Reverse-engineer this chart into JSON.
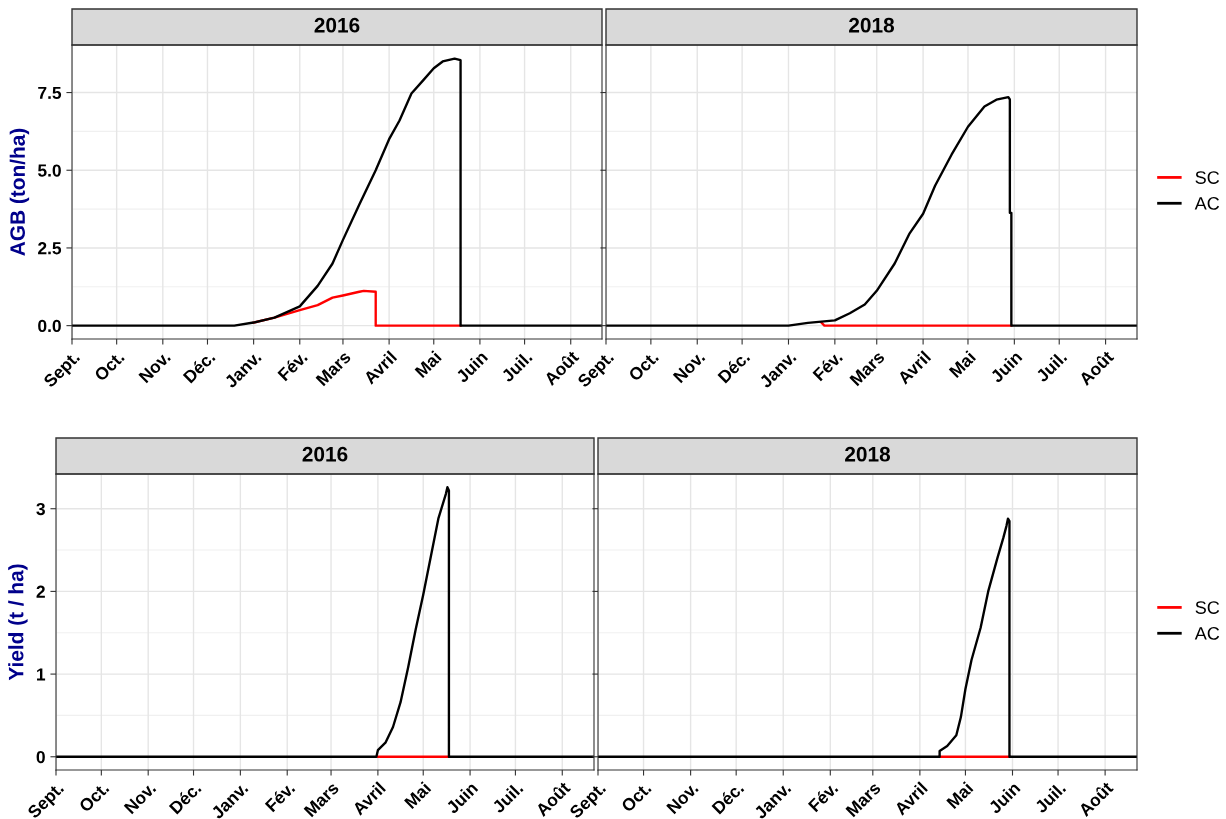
{
  "chart_data": [
    {
      "type": "line",
      "title": "2016",
      "ylabel": "AGB (ton/ha)",
      "xlim": [
        "2015-09-01",
        "2016-08-22"
      ],
      "ylim": [
        -0.43,
        9.03
      ],
      "yticks": [
        {
          "value": 0,
          "label": "0.0"
        },
        2.5,
        {
          "value": 5,
          "label": "5.0"
        },
        7.5
      ],
      "xticks": [
        {
          "value": "2015-09-01",
          "label": "Sept."
        },
        {
          "value": "2015-10-01",
          "label": "Oct."
        },
        {
          "value": "2015-11-01",
          "label": "Nov."
        },
        {
          "value": "2015-12-01",
          "label": "Déc."
        },
        {
          "value": "2016-01-01",
          "label": "Janv."
        },
        {
          "value": "2016-02-01",
          "label": "Fév."
        },
        {
          "value": "2016-03-01",
          "label": "Mars"
        },
        {
          "value": "2016-04-01",
          "label": "Avril"
        },
        {
          "value": "2016-05-01",
          "label": "Mai"
        },
        {
          "value": "2016-06-01",
          "label": "Juin"
        },
        {
          "value": "2016-07-01",
          "label": "Juil."
        },
        {
          "value": "2016-08-01",
          "label": "Août"
        }
      ],
      "grid": true,
      "series": [
        {
          "color": "#ff0000",
          "x": [
            "2016-01-01",
            "2016-01-15",
            "2016-02-01",
            "2016-02-13",
            "2016-02-23",
            "2016-03-01",
            "2016-03-12",
            "2016-03-15",
            "2016-03-23",
            "2016-03-23",
            "2016-05-19"
          ],
          "values": [
            0.1,
            0.26,
            0.5,
            0.66,
            0.9,
            0.97,
            1.09,
            1.12,
            1.09,
            0,
            0
          ]
        },
        {
          "color": "#000000",
          "x": [
            "2015-09-01",
            "2015-12-19",
            "2016-01-01",
            "2016-01-15",
            "2016-02-01",
            "2016-02-13",
            "2016-02-23",
            "2016-03-01",
            "2016-03-12",
            "2016-03-23",
            "2016-04-01",
            "2016-04-08",
            "2016-04-16",
            "2016-04-24",
            "2016-05-01",
            "2016-05-07",
            "2016-05-15",
            "2016-05-19",
            "2016-05-19",
            "2016-08-22"
          ],
          "values": [
            0,
            0,
            0.1,
            0.26,
            0.62,
            1.28,
            2.0,
            2.76,
            3.9,
            5.0,
            6.0,
            6.6,
            7.47,
            7.9,
            8.28,
            8.5,
            8.59,
            8.54,
            0,
            0
          ]
        }
      ]
    },
    {
      "type": "line",
      "title": "2018",
      "xlim": [
        "2017-09-01",
        "2018-08-22"
      ],
      "ylim": [
        -0.43,
        9.03
      ],
      "yticks": [
        0,
        2.5,
        5,
        7.5
      ],
      "xticks": [
        {
          "value": "2017-09-01",
          "label": "Sept."
        },
        {
          "value": "2017-10-01",
          "label": "Oct."
        },
        {
          "value": "2017-11-01",
          "label": "Nov."
        },
        {
          "value": "2017-12-01",
          "label": "Déc."
        },
        {
          "value": "2018-01-01",
          "label": "Janv."
        },
        {
          "value": "2018-02-01",
          "label": "Fév."
        },
        {
          "value": "2018-03-01",
          "label": "Mars"
        },
        {
          "value": "2018-04-01",
          "label": "Avril"
        },
        {
          "value": "2018-05-01",
          "label": "Mai"
        },
        {
          "value": "2018-06-01",
          "label": "Juin"
        },
        {
          "value": "2018-07-01",
          "label": "Juil."
        },
        {
          "value": "2018-08-01",
          "label": "Août"
        }
      ],
      "grid": true,
      "tick_labels": "x",
      "legend": "right",
      "series": [
        {
          "name": "SC",
          "color": "#ff0000",
          "x": [
            "2018-01-23",
            "2018-01-25",
            "2018-05-30"
          ],
          "values": [
            0.1,
            0,
            0
          ]
        },
        {
          "name": "AC",
          "color": "#000000",
          "x": [
            "2017-09-01",
            "2018-01-01",
            "2018-01-14",
            "2018-02-01",
            "2018-02-11",
            "2018-02-21",
            "2018-03-01",
            "2018-03-13",
            "2018-03-23",
            "2018-04-01",
            "2018-04-09",
            "2018-04-20",
            "2018-05-01",
            "2018-05-12",
            "2018-05-20",
            "2018-05-28",
            "2018-05-29",
            "2018-05-29",
            "2018-05-30",
            "2018-05-30",
            "2018-08-22"
          ],
          "values": [
            0,
            0,
            0.09,
            0.17,
            0.4,
            0.68,
            1.12,
            2.0,
            2.97,
            3.6,
            4.5,
            5.5,
            6.4,
            7.05,
            7.27,
            7.35,
            7.28,
            3.63,
            3.63,
            0,
            0
          ]
        }
      ]
    },
    {
      "type": "line",
      "title": "2016",
      "ylabel": "Yield (t / ha)",
      "xlim": [
        "2015-09-01",
        "2016-08-22"
      ],
      "ylim": [
        -0.16,
        3.42
      ],
      "yticks": [
        0,
        1,
        2,
        3
      ],
      "xticks": [
        {
          "value": "2015-09-01",
          "label": "Sept."
        },
        {
          "value": "2015-10-01",
          "label": "Oct."
        },
        {
          "value": "2015-11-01",
          "label": "Nov."
        },
        {
          "value": "2015-12-01",
          "label": "Déc."
        },
        {
          "value": "2016-01-01",
          "label": "Janv."
        },
        {
          "value": "2016-02-01",
          "label": "Fév."
        },
        {
          "value": "2016-03-01",
          "label": "Mars"
        },
        {
          "value": "2016-04-01",
          "label": "Avril"
        },
        {
          "value": "2016-05-01",
          "label": "Mai"
        },
        {
          "value": "2016-06-01",
          "label": "Juin"
        },
        {
          "value": "2016-07-01",
          "label": "Juil."
        },
        {
          "value": "2016-08-01",
          "label": "Août"
        }
      ],
      "grid": true,
      "series": [
        {
          "color": "#ff0000",
          "x": [
            "2016-04-01",
            "2016-05-18"
          ],
          "values": [
            0,
            0
          ]
        },
        {
          "color": "#000000",
          "x": [
            "2015-09-01",
            "2016-03-31",
            "2016-04-01",
            "2016-04-06",
            "2016-04-11",
            "2016-04-16",
            "2016-04-21",
            "2016-04-26",
            "2016-05-01",
            "2016-05-06",
            "2016-05-11",
            "2016-05-16",
            "2016-05-17",
            "2016-05-18",
            "2016-05-18",
            "2016-08-22"
          ],
          "values": [
            0,
            0,
            0.08,
            0.17,
            0.36,
            0.66,
            1.08,
            1.54,
            1.96,
            2.42,
            2.88,
            3.18,
            3.26,
            3.22,
            0,
            0
          ]
        }
      ]
    },
    {
      "type": "line",
      "title": "2018",
      "xlim": [
        "2017-09-01",
        "2018-08-22"
      ],
      "ylim": [
        -0.16,
        3.42
      ],
      "yticks": [
        0,
        1,
        2,
        3
      ],
      "xticks": [
        {
          "value": "2017-09-01",
          "label": "Sept."
        },
        {
          "value": "2017-10-01",
          "label": "Oct."
        },
        {
          "value": "2017-11-01",
          "label": "Nov."
        },
        {
          "value": "2017-12-01",
          "label": "Déc."
        },
        {
          "value": "2018-01-01",
          "label": "Janv."
        },
        {
          "value": "2018-02-01",
          "label": "Fév."
        },
        {
          "value": "2018-03-01",
          "label": "Mars"
        },
        {
          "value": "2018-04-01",
          "label": "Avril"
        },
        {
          "value": "2018-05-01",
          "label": "Mai"
        },
        {
          "value": "2018-06-01",
          "label": "Juin"
        },
        {
          "value": "2018-07-01",
          "label": "Juil."
        },
        {
          "value": "2018-08-01",
          "label": "Août"
        }
      ],
      "grid": true,
      "tick_labels": "x",
      "legend": "right",
      "series": [
        {
          "name": "SC",
          "color": "#ff0000",
          "x": [
            "2018-04-14",
            "2018-05-30"
          ],
          "values": [
            0,
            0
          ]
        },
        {
          "name": "AC",
          "color": "#000000",
          "x": [
            "2017-09-01",
            "2018-04-14",
            "2018-04-14",
            "2018-04-19",
            "2018-04-25",
            "2018-04-28",
            "2018-05-01",
            "2018-05-05",
            "2018-05-11",
            "2018-05-16",
            "2018-05-22",
            "2018-05-26",
            "2018-05-28",
            "2018-05-29",
            "2018-05-30",
            "2018-05-30",
            "2018-08-22"
          ],
          "values": [
            0,
            0,
            0.07,
            0.13,
            0.26,
            0.48,
            0.82,
            1.17,
            1.56,
            2.0,
            2.4,
            2.65,
            2.79,
            2.88,
            2.85,
            0,
            0
          ]
        }
      ]
    }
  ]
}
